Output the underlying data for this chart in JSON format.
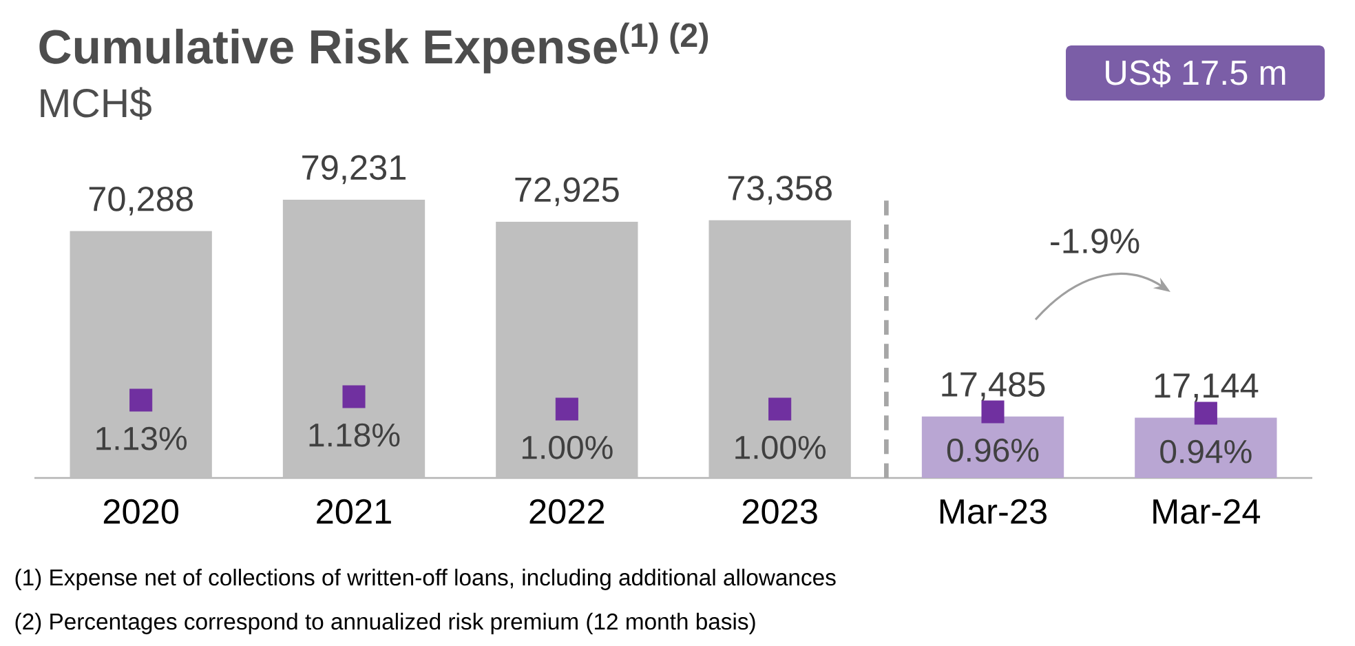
{
  "chart_data": {
    "type": "bar",
    "title": "Cumulative Risk Expense$^{(1) (2)}$",
    "subtitle": "MCH$",
    "categories": [
      "2020",
      "2021",
      "2022",
      "2023",
      "Mar-23",
      "Mar-24"
    ],
    "series": [
      {
        "colors": [
          "#bfbfbf",
          "#bfbfbf",
          "#bfbfbf",
          "#bfbfbf",
          "#b9a6d3",
          "#b9a6d3"
        ],
        "values": [
          70288,
          79231,
          72925,
          73358,
          17485,
          17144
        ],
        "value_labels": [
          "70,288",
          "79,231",
          "72,925",
          "73,358",
          "17,485",
          "17,144"
        ]
      },
      {
        "type": "scatter",
        "axis": "y2",
        "color": "#7030a0",
        "marker": "square",
        "values": [
          1.13,
          1.18,
          1.0,
          1.0,
          0.96,
          0.94
        ],
        "value_labels": [
          "1.13%",
          "1.18%",
          "1.00%",
          "1.00%",
          "0.96%",
          "0.94%"
        ]
      }
    ],
    "tick_labels": "x",
    "annotations": [
      "US$ 17.5 m",
      "-1.9%",
      "(1)  Expense net of collections of written-off loans, including additional allowances",
      "(2)  Percentages correspond to annualized risk premium (12 month basis)"
    ]
  }
}
